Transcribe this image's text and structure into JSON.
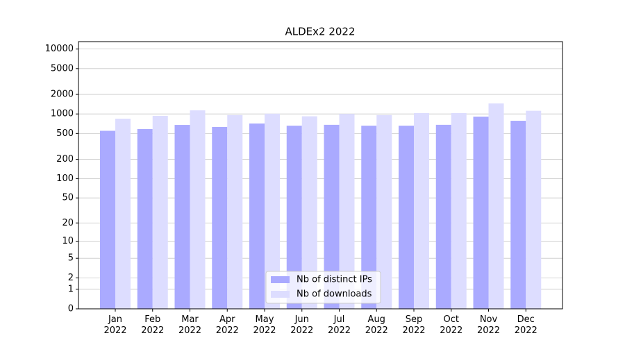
{
  "chart_data": {
    "type": "bar",
    "title": "ALDEx2 2022",
    "categories": [
      "Jan\n2022",
      "Feb\n2022",
      "Mar\n2022",
      "Apr\n2022",
      "May\n2022",
      "Jun\n2022",
      "Jul\n2022",
      "Aug\n2022",
      "Sep\n2022",
      "Oct\n2022",
      "Nov\n2022",
      "Dec\n2022"
    ],
    "series": [
      {
        "name": "Nb of distinct IPs",
        "color": "#aaaaff",
        "values": [
          550,
          585,
          677,
          630,
          713,
          660,
          680,
          660,
          660,
          680,
          910,
          785
        ]
      },
      {
        "name": "Nb of downloads",
        "color": "#ddddff",
        "values": [
          846,
          933,
          1137,
          960,
          1010,
          920,
          1000,
          960,
          1030,
          1030,
          1452,
          1120
        ]
      }
    ],
    "scale": "log1p",
    "ylim": [
      0,
      13000
    ],
    "yticks": [
      0,
      1,
      2,
      5,
      10,
      20,
      50,
      100,
      200,
      500,
      1000,
      2000,
      5000,
      10000
    ],
    "grid": true,
    "legend": "lower center"
  }
}
